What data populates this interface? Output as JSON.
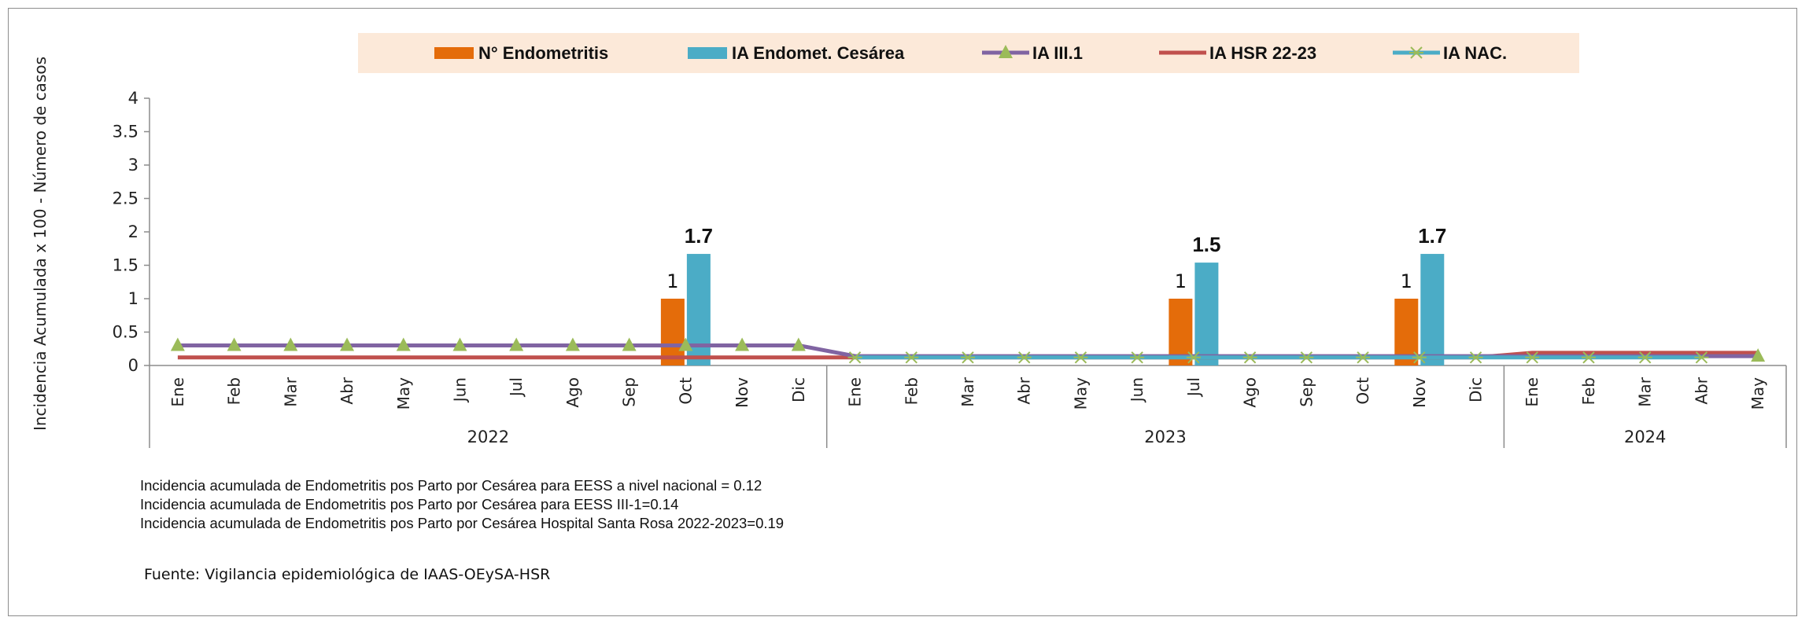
{
  "chart_data": {
    "type": "bar",
    "ylabel": "Incidencia Acumulada x 100 - Número de casos",
    "ylim": [
      0,
      4
    ],
    "yticks": [
      "0",
      "0.5",
      "1",
      "1.5",
      "2",
      "2.5",
      "3",
      "3.5",
      "4"
    ],
    "legend_position": "top",
    "categories": [
      "Ene",
      "Feb",
      "Mar",
      "Abr",
      "May",
      "Jun",
      "Jul",
      "Ago",
      "Sep",
      "Oct",
      "Nov",
      "Dic",
      "Ene",
      "Feb",
      "Mar",
      "Abr",
      "May",
      "Jun",
      "Jul",
      "Ago",
      "Sep",
      "Oct",
      "Nov",
      "Dic",
      "Ene",
      "Feb",
      "Mar",
      "Abr",
      "May"
    ],
    "year_groups": [
      {
        "label": "2022",
        "count": 12
      },
      {
        "label": "2023",
        "count": 12
      },
      {
        "label": "2024",
        "count": 5
      }
    ],
    "series": [
      {
        "name": "N° Endometritis",
        "kind": "bar",
        "color": "#E46C0A",
        "values": [
          null,
          null,
          null,
          null,
          null,
          null,
          null,
          null,
          null,
          1,
          null,
          null,
          null,
          null,
          null,
          null,
          null,
          null,
          1,
          null,
          null,
          null,
          1,
          null,
          null,
          null,
          null,
          null,
          null
        ],
        "labels": [
          "",
          "",
          "",
          "",
          "",
          "",
          "",
          "",
          "",
          "1",
          "",
          "",
          "",
          "",
          "",
          "",
          "",
          "",
          "1",
          "",
          "",
          "",
          "1",
          "",
          "",
          "",
          "",
          "",
          ""
        ]
      },
      {
        "name": "IA Endomet. Cesárea",
        "kind": "bar",
        "color": "#4BACC6",
        "values": [
          null,
          null,
          null,
          null,
          null,
          null,
          null,
          null,
          null,
          1.67,
          null,
          null,
          null,
          null,
          null,
          null,
          null,
          null,
          1.54,
          null,
          null,
          null,
          1.67,
          null,
          null,
          null,
          null,
          null,
          null
        ],
        "labels": [
          "",
          "",
          "",
          "",
          "",
          "",
          "",
          "",
          "",
          "1.7",
          "",
          "",
          "",
          "",
          "",
          "",
          "",
          "",
          "1.5",
          "",
          "",
          "",
          "1.7",
          "",
          "",
          "",
          "",
          "",
          ""
        ]
      },
      {
        "name": "IA  III.1",
        "kind": "line",
        "color": "#8064A2",
        "marker": "triangle",
        "marker_color": "#9BBB59",
        "values": [
          0.3,
          0.3,
          0.3,
          0.3,
          0.3,
          0.3,
          0.3,
          0.3,
          0.3,
          0.3,
          0.3,
          0.3,
          0.14,
          0.14,
          0.14,
          0.14,
          0.14,
          0.14,
          0.14,
          0.14,
          0.14,
          0.14,
          0.14,
          0.14,
          0.14,
          0.14,
          0.14,
          0.14,
          0.14
        ]
      },
      {
        "name": "IA HSR 22-23",
        "kind": "line",
        "color": "#C0504D",
        "values": [
          0.12,
          0.12,
          0.12,
          0.12,
          0.12,
          0.12,
          0.12,
          0.12,
          0.12,
          0.12,
          0.12,
          0.12,
          0.12,
          0.12,
          0.12,
          0.12,
          0.12,
          0.12,
          0.12,
          0.12,
          0.12,
          0.12,
          0.12,
          0.12,
          0.19,
          0.19,
          0.19,
          0.19,
          0.19
        ]
      },
      {
        "name": "IA  NAC.",
        "kind": "line",
        "color": "#4BACC6",
        "marker": "star",
        "marker_color": "#9BBB59",
        "values": [
          null,
          null,
          null,
          null,
          null,
          null,
          null,
          null,
          null,
          null,
          null,
          null,
          0.12,
          0.12,
          0.12,
          0.12,
          0.12,
          0.12,
          0.12,
          0.12,
          0.12,
          0.12,
          0.12,
          0.12,
          0.12,
          0.12,
          0.12,
          0.12,
          null
        ]
      }
    ]
  },
  "legend": {
    "background": "#FCE9D9",
    "items": [
      {
        "label": "N° Endometritis",
        "type": "bar",
        "color": "#E46C0A"
      },
      {
        "label": "IA Endomet. Cesárea",
        "type": "bar",
        "color": "#4BACC6"
      },
      {
        "label": "IA  III.1",
        "type": "line",
        "color": "#8064A2",
        "marker_color": "#9BBB59"
      },
      {
        "label": "IA HSR 22-23",
        "type": "line",
        "color": "#C0504D"
      },
      {
        "label": "IA  NAC.",
        "type": "line",
        "color": "#4BACC6",
        "marker_color": "#9BBB59"
      }
    ]
  },
  "notes": [
    "Incidencia acumulada de Endometritis pos Parto por Cesárea para EESS a nivel nacional = 0.12",
    "Incidencia acumulada de Endometritis pos Parto por Cesárea para EESS III-1=0.14",
    "Incidencia acumulada de Endometritis pos Parto por Cesárea Hospital Santa Rosa 2022-2023=0.19"
  ],
  "source": "Fuente: Vigilancia epidemiológica de IAAS-OEySA-HSR"
}
